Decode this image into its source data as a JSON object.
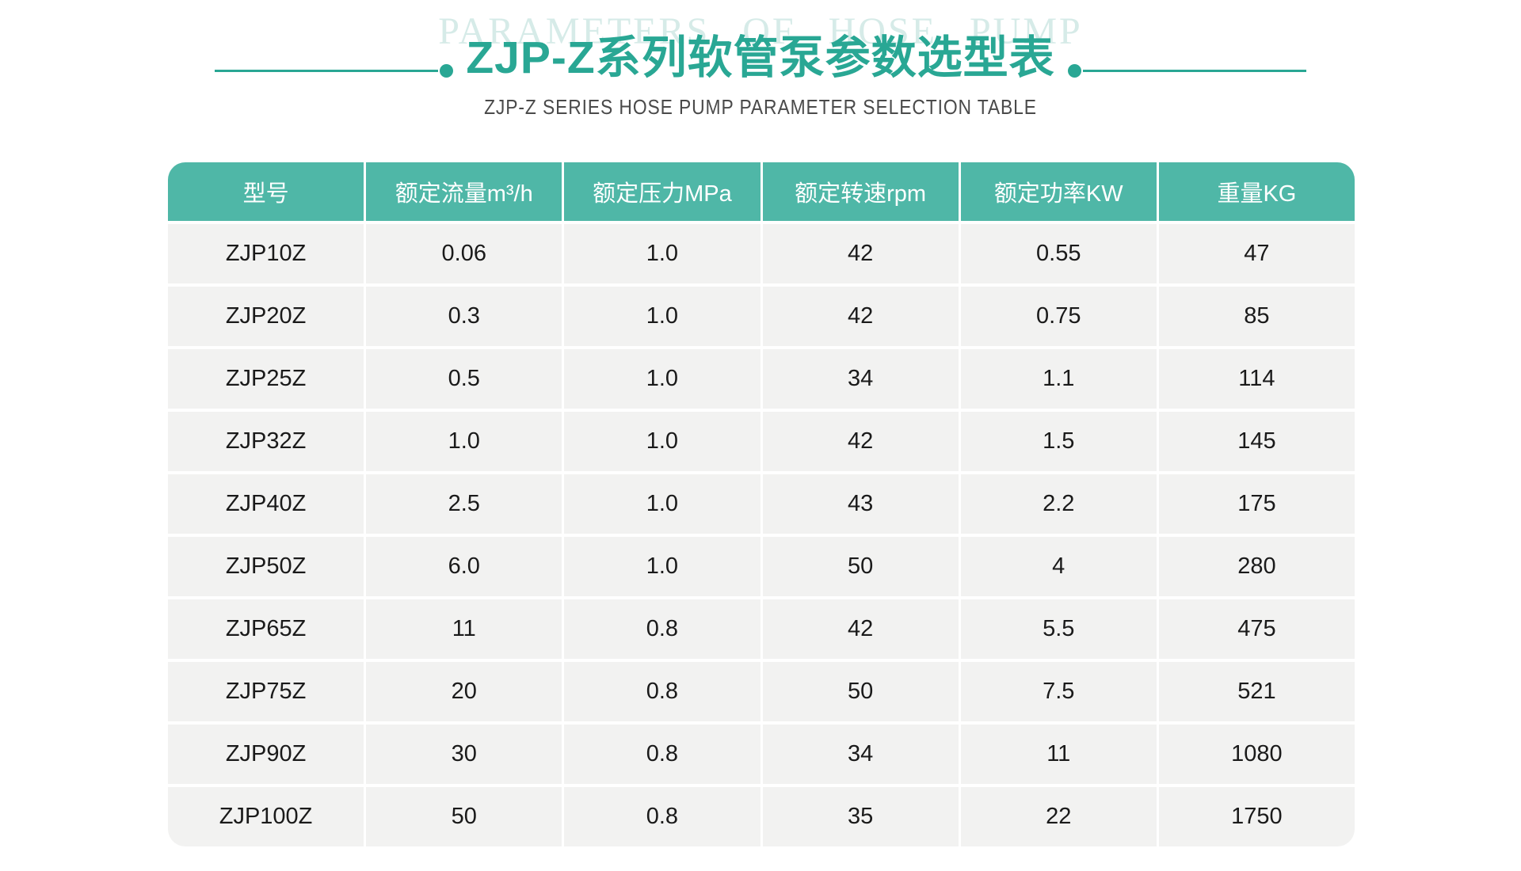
{
  "header": {
    "watermark": "PARAMETERS OF HOSE PUMP",
    "title": "ZJP-Z系列软管泵参数选型表",
    "subtitle": "ZJP-Z SERIES HOSE PUMP PARAMETER SELECTION TABLE"
  },
  "colors": {
    "accent": "#29A794",
    "header_bg": "#4FB7A7",
    "row_bg": "#F2F2F1",
    "watermark": "#D6EBE8",
    "cell_text": "#1A1A1A",
    "subtitle_text": "#4A4A4A"
  },
  "table": {
    "columns": [
      "型号",
      "额定流量m³/h",
      "额定压力MPa",
      "额定转速rpm",
      "额定功率KW",
      "重量KG"
    ],
    "rows": [
      [
        "ZJP10Z",
        "0.06",
        "1.0",
        "42",
        "0.55",
        "47"
      ],
      [
        "ZJP20Z",
        "0.3",
        "1.0",
        "42",
        "0.75",
        "85"
      ],
      [
        "ZJP25Z",
        "0.5",
        "1.0",
        "34",
        "1.1",
        "114"
      ],
      [
        "ZJP32Z",
        "1.0",
        "1.0",
        "42",
        "1.5",
        "145"
      ],
      [
        "ZJP40Z",
        "2.5",
        "1.0",
        "43",
        "2.2",
        "175"
      ],
      [
        "ZJP50Z",
        "6.0",
        "1.0",
        "50",
        "4",
        "280"
      ],
      [
        "ZJP65Z",
        "11",
        "0.8",
        "42",
        "5.5",
        "475"
      ],
      [
        "ZJP75Z",
        "20",
        "0.8",
        "50",
        "7.5",
        "521"
      ],
      [
        "ZJP90Z",
        "30",
        "0.8",
        "34",
        "11",
        "1080"
      ],
      [
        "ZJP100Z",
        "50",
        "0.8",
        "35",
        "22",
        "1750"
      ]
    ]
  }
}
